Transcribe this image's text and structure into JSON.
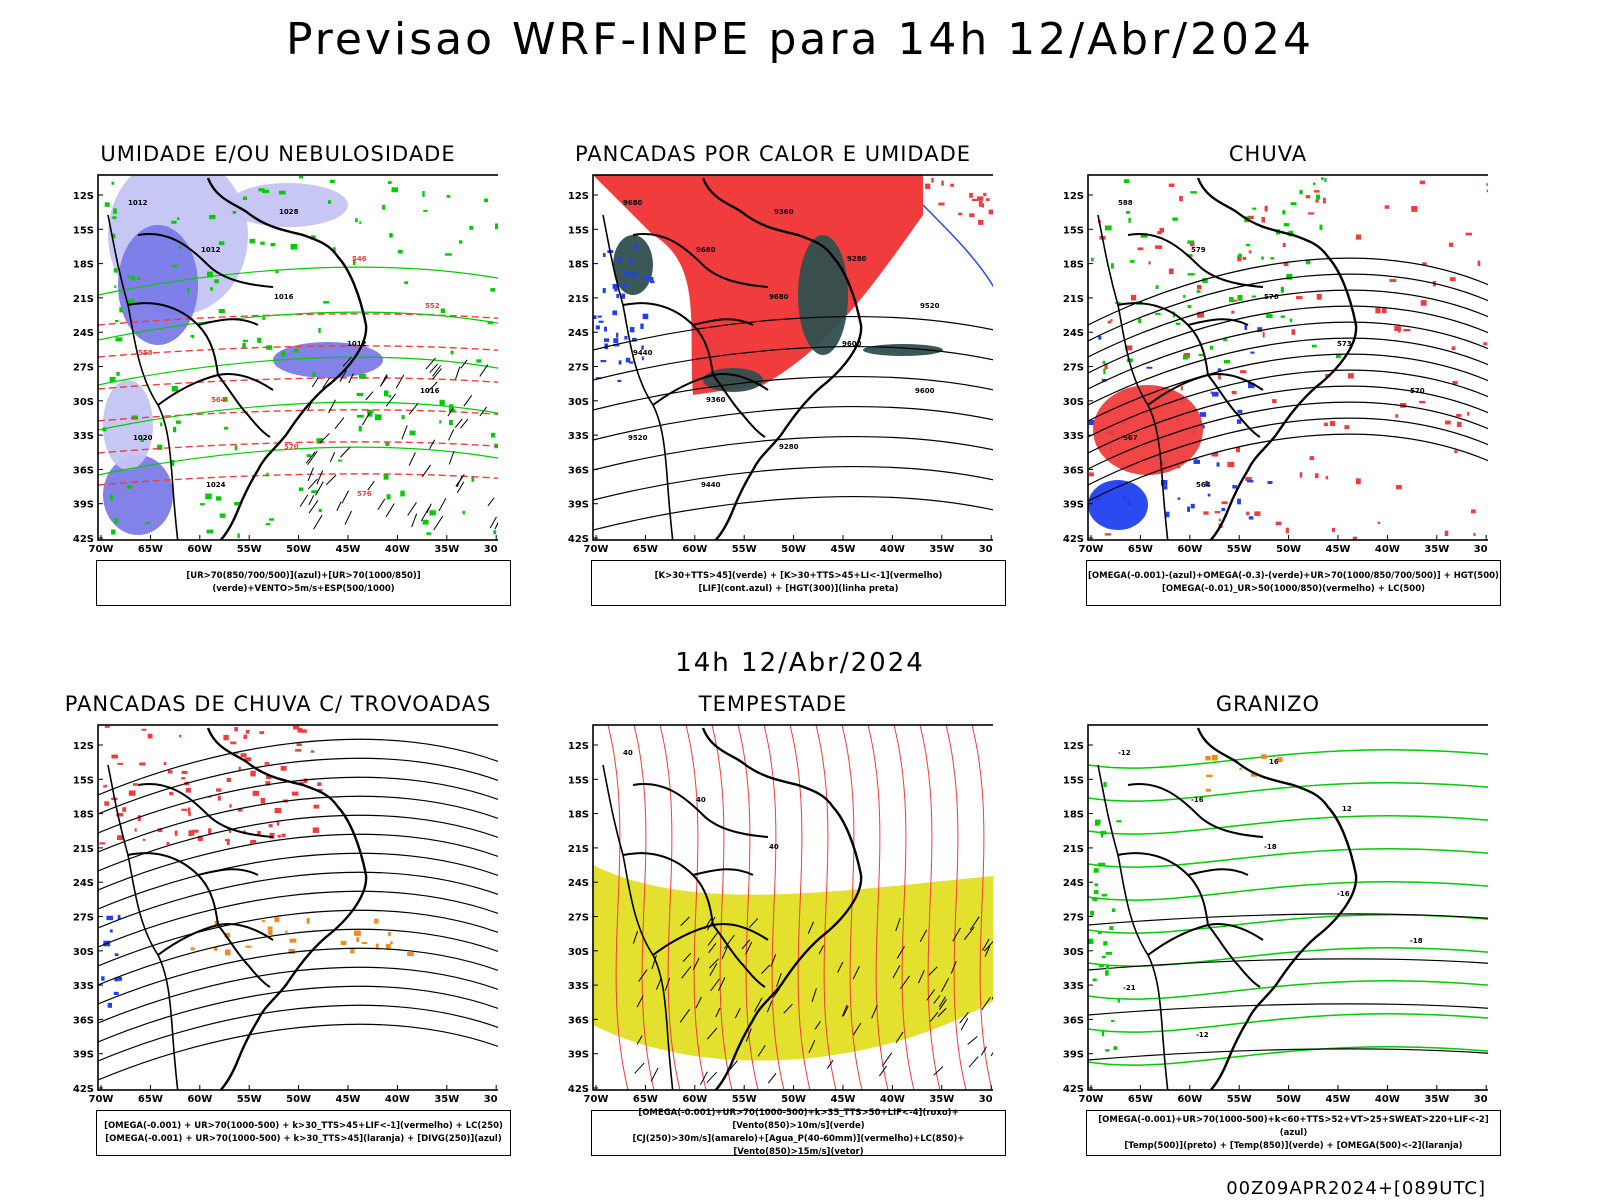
{
  "header": {
    "title": "Previsao WRF-INPE  para 14h 12/Abr/2024"
  },
  "mid_title": "14h 12/Abr/2024",
  "footer": {
    "run": "00Z09APR2024+[089UTC]"
  },
  "axes": {
    "lat_labels": [
      "12S",
      "15S",
      "18S",
      "21S",
      "24S",
      "27S",
      "30S",
      "33S",
      "36S",
      "39S",
      "42S"
    ],
    "lon_labels": [
      "70W",
      "65W",
      "60W",
      "55W",
      "50W",
      "45W",
      "40W",
      "35W",
      "30W"
    ]
  },
  "panels": [
    {
      "title": "UMIDADE E/OU NEBULOSIDADE",
      "legend": [
        "[UR>70(850/700/500)](azul)+[UR>70(1000/850)](verde)+VENTO>5m/s+ESP(500/1000)"
      ],
      "iso_labels": [
        "1012",
        "1012",
        "1016",
        "1012",
        "1016",
        "1020",
        "1024",
        "1028",
        "546",
        "552",
        "558",
        "564",
        "570",
        "576"
      ]
    },
    {
      "title": "PANCADAS POR CALOR E UMIDADE",
      "legend": [
        "[K>30+TTS>45](verde) + [K>30+TTS>45+LI<-1](vermelho)",
        "[LIF](cont.azul) + [HGT(300)](linha preta)"
      ],
      "iso_labels": [
        "9680",
        "9680",
        "9680",
        "9600",
        "9600",
        "9520",
        "9440",
        "9360",
        "9280",
        "9520",
        "9440",
        "9360",
        "9280"
      ]
    },
    {
      "title": "CHUVA",
      "legend": [
        "[OMEGA(-0.001)-(azul)+OMEGA(-0.3)-(verde)+UR>70(1000/850/700/500)] + HGT(500)",
        "[OMEGA(-0.01)_UR>50(1000/850)(vermelho) + LC(500)"
      ],
      "iso_labels": [
        "588",
        "579",
        "576",
        "573",
        "570",
        "567",
        "564"
      ]
    },
    {
      "title": "PANCADAS DE CHUVA C/ TROVOADAS",
      "legend": [
        "[OMEGA(-0.001) + UR>70(1000-500) + k>30_TTS>45+LIF<-1](vermelho) + LC(250)",
        "[OMEGA(-0.001) + UR>70(1000-500) + k>30_TTS>45](laranja) + [DIVG(250)](azul)"
      ],
      "iso_labels": []
    },
    {
      "title": "TEMPESTADE",
      "legend": [
        "[OMEGA(-0.001)+UR>70(1000-500)+k>35_TTS>50+LIF<-4](roxo)+[Vento(850)>10m/s](verde)",
        "[CJ(250)>30m/s](amarelo)+[Agua_P(40-60mm)](vermelho)+LC(850)+[Vento(850)>15m/s](vetor)"
      ],
      "iso_labels": [
        "40",
        "40",
        "40"
      ]
    },
    {
      "title": "GRANIZO",
      "legend": [
        "[OMEGA(-0.001)+UR>70(1000-500)+k<60+TTS>52+VT>25+SWEAT>220+LIF<-2](azul)",
        "[Temp(500)](preto) + [Temp(850)](verde) + [OMEGA(500)<-2](laranja)"
      ],
      "iso_labels": [
        "-12",
        "-16",
        "-18",
        "-16",
        "-18",
        "-21",
        "-12",
        "16",
        "12"
      ]
    }
  ],
  "colors": {
    "blue_fill": "#7b7be8",
    "light_blue_fill": "#c4c4f4",
    "green": "#00cc00",
    "red": "#f03c3c",
    "dark_teal": "#2f4f4f",
    "yellow": "#e3e02e",
    "orange": "#f08a1e",
    "blue": "#2040f0"
  }
}
